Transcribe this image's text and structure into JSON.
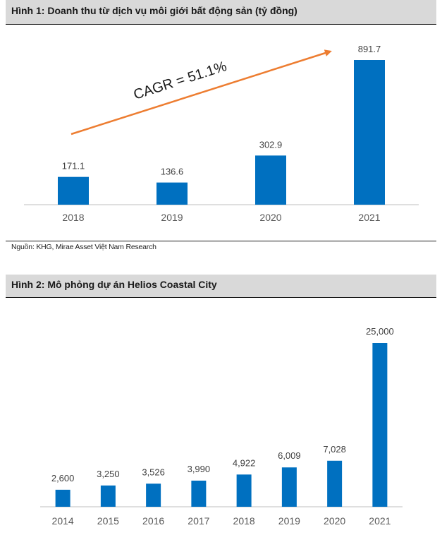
{
  "colors": {
    "bar": "#0070c0",
    "arrow": "#ed7d31",
    "axis": "#bfbfbf",
    "header_bg": "#d9d9d9"
  },
  "figure1": {
    "title": "Hình 1: Doanh thu từ dịch vụ môi giới bất động sản (tỷ đồng)",
    "source": "Nguồn: KHG, Mirae Asset Việt Nam Research",
    "annotation": "CAGR = 51.1%"
  },
  "figure2": {
    "title": "Hình 2: Mô phỏng dự án Helios Coastal City"
  },
  "chart_data": [
    {
      "type": "bar",
      "title": "Hình 1: Doanh thu từ dịch vụ môi giới bất động sản (tỷ đồng)",
      "categories": [
        "2018",
        "2019",
        "2020",
        "2021"
      ],
      "values": [
        171.1,
        136.6,
        302.9,
        891.7
      ],
      "labels": [
        "171.1",
        "136.6",
        "302.9",
        "891.7"
      ],
      "ylim": [
        0,
        1000
      ],
      "grid": false,
      "annotation": "CAGR = 51.1%"
    },
    {
      "type": "bar",
      "title": "Hình 2: Mô phỏng dự án Helios Coastal City",
      "categories": [
        "2014",
        "2015",
        "2016",
        "2017",
        "2018",
        "2019",
        "2020",
        "2021"
      ],
      "values": [
        2600,
        3250,
        3526,
        3990,
        4922,
        6009,
        7028,
        25000
      ],
      "labels": [
        "2,600",
        "3,250",
        "3,526",
        "3,990",
        "4,922",
        "6,009",
        "7,028",
        "25,000"
      ],
      "ylim": [
        0,
        27000
      ],
      "grid": false
    }
  ]
}
